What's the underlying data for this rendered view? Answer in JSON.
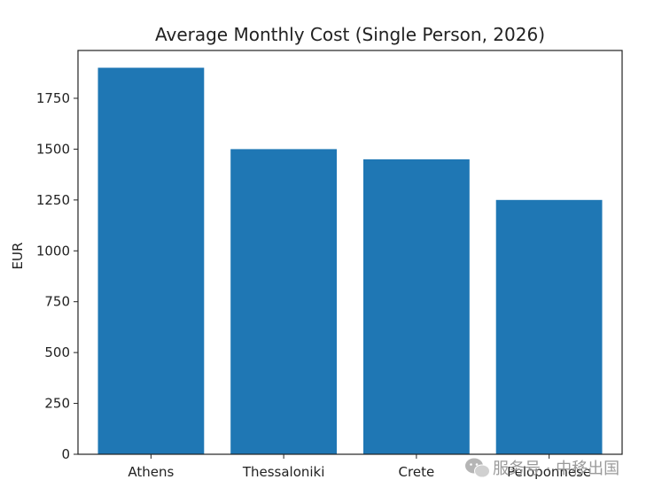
{
  "chart_data": {
    "type": "bar",
    "title": "Average Monthly Cost (Single Person, 2026)",
    "xlabel": "",
    "ylabel": "EUR",
    "categories": [
      "Athens",
      "Thessaloniki",
      "Crete",
      "Peloponnese"
    ],
    "values": [
      1900,
      1500,
      1450,
      1250
    ],
    "ylim": [
      0,
      1985
    ],
    "yticks": [
      0,
      250,
      500,
      750,
      1000,
      1250,
      1500,
      1750
    ],
    "grid": false,
    "legend": "none"
  },
  "colors": {
    "bar": "#1f77b4",
    "axis": "#222222",
    "watermark": "#9a9a9a"
  },
  "watermark": {
    "icon": "wechat-icon",
    "text": "服务号 · 中移出国"
  }
}
